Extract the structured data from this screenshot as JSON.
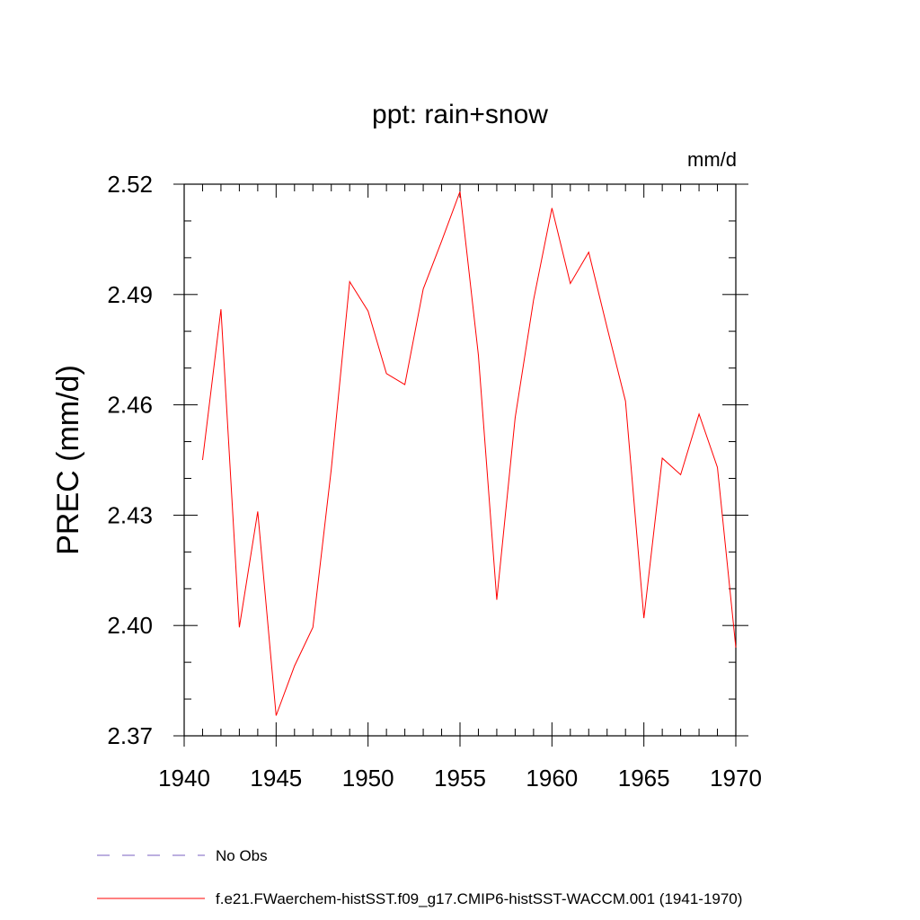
{
  "chart_data": {
    "type": "line",
    "title": "ppt: rain+snow",
    "units": "mm/d",
    "xlabel": "",
    "ylabel": "PREC  (mm/d)",
    "xlim": [
      1940,
      1970
    ],
    "ylim": [
      2.37,
      2.52
    ],
    "x_ticks": [
      1940,
      1945,
      1950,
      1955,
      1960,
      1965,
      1970
    ],
    "x_tick_labels": [
      "1940",
      "1945",
      "1950",
      "1955",
      "1960",
      "1965",
      "1970"
    ],
    "y_ticks": [
      2.37,
      2.4,
      2.43,
      2.46,
      2.49,
      2.52
    ],
    "y_tick_labels": [
      "2.37",
      "2.40",
      "2.43",
      "2.46",
      "2.49",
      "2.52"
    ],
    "grid": false,
    "legend_placement": "bottom-left",
    "series": [
      {
        "name": "f.e21.FWaerchem-histSST.f09_g17.CMIP6-histSST-WACCM.001 (1941-1970)",
        "color": "#ff0000",
        "style": "solid",
        "x": [
          1941,
          1942,
          1943,
          1944,
          1945,
          1946,
          1947,
          1948,
          1949,
          1950,
          1951,
          1952,
          1953,
          1954,
          1955,
          1956,
          1957,
          1958,
          1959,
          1960,
          1961,
          1962,
          1963,
          1964,
          1965,
          1966,
          1967,
          1968,
          1969,
          1970
        ],
        "y": [
          2.445,
          2.486,
          2.3995,
          2.431,
          2.3755,
          2.389,
          2.3995,
          2.4425,
          2.4935,
          2.4855,
          2.4685,
          2.4655,
          2.4915,
          2.5045,
          2.518,
          2.4735,
          2.407,
          2.4565,
          2.4885,
          2.5135,
          2.493,
          2.5015,
          2.481,
          2.461,
          2.402,
          2.4455,
          2.441,
          2.4575,
          2.443,
          2.394
        ]
      }
    ],
    "legend": [
      {
        "label": "No Obs",
        "color": "#7a5fc0",
        "style": "dashed"
      },
      {
        "label": "f.e21.FWaerchem-histSST.f09_g17.CMIP6-histSST-WACCM.001 (1941-1970)",
        "color": "#ff0000",
        "style": "solid"
      }
    ]
  }
}
